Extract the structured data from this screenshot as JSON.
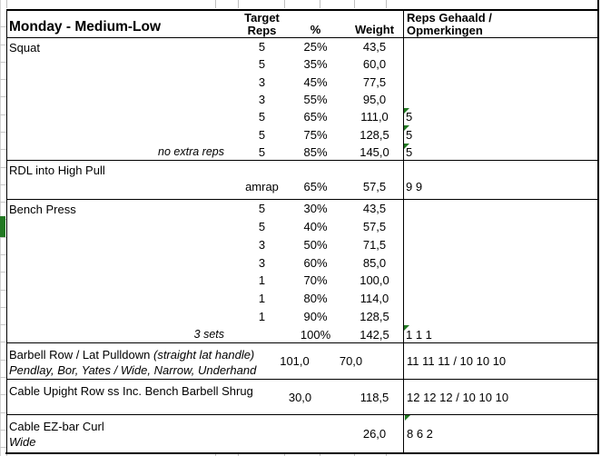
{
  "header": {
    "title": "Monday - Medium-Low",
    "target_line1": "Target",
    "target_line2": "Reps",
    "percent": "%",
    "weight": "Weight",
    "result_line1": "Reps Gehaald /",
    "result_line2": "Opmerkingen"
  },
  "colors": {
    "flag_green": "#217821",
    "grid_grey": "#bfbfbf",
    "border_black": "#000000"
  },
  "icons": {
    "flag_triangle": "cell-corner-flag"
  },
  "blocks": [
    {
      "type": "sets",
      "name": "Squat",
      "rows": [
        {
          "note": "",
          "reps": "5",
          "pct": "25%",
          "weight": "43,5",
          "result": "",
          "flag": false
        },
        {
          "note": "",
          "reps": "5",
          "pct": "35%",
          "weight": "60,0",
          "result": "",
          "flag": false
        },
        {
          "note": "",
          "reps": "3",
          "pct": "45%",
          "weight": "77,5",
          "result": "",
          "flag": false
        },
        {
          "note": "",
          "reps": "3",
          "pct": "55%",
          "weight": "95,0",
          "result": "",
          "flag": false
        },
        {
          "note": "",
          "reps": "5",
          "pct": "65%",
          "weight": "111,0",
          "result": "5",
          "flag": true
        },
        {
          "note": "",
          "reps": "5",
          "pct": "75%",
          "weight": "128,5",
          "result": "5",
          "flag": true
        },
        {
          "note": "no extra reps",
          "reps": "5",
          "pct": "85%",
          "weight": "145,0",
          "result": "5",
          "flag": true
        }
      ]
    },
    {
      "type": "sets",
      "name": "RDL into High Pull",
      "rows": [
        {
          "note": "",
          "reps": "amrap",
          "pct": "65%",
          "weight": "57,5",
          "result": "9 9",
          "flag": false
        }
      ]
    },
    {
      "type": "sets",
      "name": "Bench Press",
      "rows": [
        {
          "note": "",
          "reps": "5",
          "pct": "30%",
          "weight": "43,5",
          "result": "",
          "flag": false
        },
        {
          "note": "",
          "reps": "5",
          "pct": "40%",
          "weight": "57,5",
          "result": "",
          "flag": false
        },
        {
          "note": "",
          "reps": "3",
          "pct": "50%",
          "weight": "71,5",
          "result": "",
          "flag": false
        },
        {
          "note": "",
          "reps": "3",
          "pct": "60%",
          "weight": "85,0",
          "result": "",
          "flag": false
        },
        {
          "note": "",
          "reps": "1",
          "pct": "70%",
          "weight": "100,0",
          "result": "",
          "flag": false
        },
        {
          "note": "",
          "reps": "1",
          "pct": "80%",
          "weight": "114,0",
          "result": "",
          "flag": false
        },
        {
          "note": "",
          "reps": "1",
          "pct": "90%",
          "weight": "128,5",
          "result": "",
          "flag": false
        },
        {
          "note": "3 sets",
          "reps": "",
          "pct": "100%",
          "weight": "142,5",
          "result": "1 1 1",
          "flag": true
        }
      ]
    },
    {
      "type": "merged",
      "name": "Barbell Row / Lat Pulldown",
      "name_suffix_italic": "(straight lat handle)",
      "subtitle": "Pendlay, Bor, Yates / Wide, Narrow, Underhand",
      "value_pct": "101,0",
      "value_weight": "70,0",
      "result": "11 11 11 / 10 10 10",
      "flag": false
    },
    {
      "type": "merged",
      "name": "Cable Upight Row ss Inc. Bench Barbell Shrug",
      "name_suffix_italic": "",
      "subtitle": "",
      "value_pct": "30,0",
      "value_weight": "118,5",
      "result": "12 12 12 / 10 10 10",
      "flag": false
    },
    {
      "type": "merged",
      "name": "Cable EZ-bar Curl",
      "name_suffix_italic": "",
      "subtitle": "Wide",
      "value_pct": "",
      "value_weight": "26,0",
      "result": "8 6 2",
      "flag": true
    }
  ]
}
